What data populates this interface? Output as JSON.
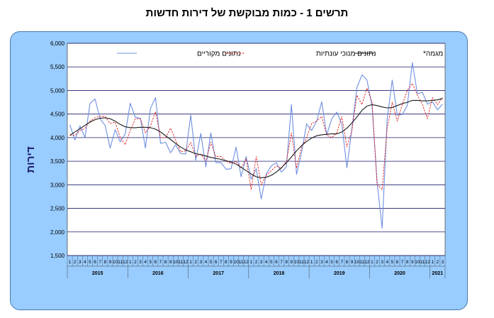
{
  "title": "תרשים 1 - כמות מבוקשת של דירות חדשות",
  "chart_data": {
    "type": "line",
    "ylabel": "דירות",
    "xlabel": "",
    "ylim": [
      1500,
      6000
    ],
    "yticks": [
      "1,500",
      "2,000",
      "2,500",
      "3,000",
      "3,500",
      "4,000",
      "4,500",
      "5,000",
      "5,500",
      "6,000"
    ],
    "ytick_values": [
      1500,
      2000,
      2500,
      3000,
      3500,
      4000,
      4500,
      5000,
      5500,
      6000
    ],
    "grid": true,
    "legend_position": "top",
    "x_month_labels": [
      "1",
      "2",
      "3",
      "4",
      "5",
      "6",
      "7",
      "8",
      "9",
      "10",
      "11",
      "12"
    ],
    "years": [
      "2015",
      "2016",
      "2017",
      "2018",
      "2019",
      "2020",
      "2021"
    ],
    "series": [
      {
        "name": "נתונים מקוריים",
        "color": "#6f8fe0",
        "style": "solid",
        "values": [
          4270,
          3950,
          4250,
          4000,
          4720,
          4820,
          4400,
          4260,
          3780,
          4170,
          3910,
          4080,
          4730,
          4430,
          4410,
          3780,
          4620,
          4850,
          3880,
          3900,
          3680,
          3850,
          3660,
          3650,
          4480,
          3520,
          4090,
          3380,
          4100,
          3470,
          3470,
          3330,
          3340,
          3800,
          3170,
          3600,
          3120,
          3340,
          2700,
          3230,
          3400,
          3470,
          3270,
          3380,
          4700,
          3220,
          3690,
          4290,
          4150,
          4350,
          4760,
          4060,
          4400,
          4540,
          4290,
          3360,
          4190,
          5060,
          5330,
          5220,
          4660,
          3050,
          2080,
          4400,
          5220,
          4480,
          4490,
          4680,
          5590,
          4930,
          4960,
          4710,
          4760,
          4590,
          4710
        ],
        "line_width": 1.1
      },
      {
        "name": "נתונים מנוכי עונתיות",
        "color": "#e02020",
        "style": "dashed",
        "values": [
          4050,
          4050,
          4150,
          4200,
          4350,
          4420,
          4450,
          4450,
          4300,
          4330,
          4000,
          3850,
          4150,
          4400,
          4400,
          4100,
          4250,
          4550,
          4000,
          4000,
          4200,
          3950,
          3700,
          3720,
          3900,
          3600,
          3650,
          3500,
          3900,
          3600,
          3600,
          3500,
          3450,
          3500,
          3350,
          3550,
          2900,
          3600,
          3000,
          3200,
          3300,
          3400,
          3350,
          3500,
          4100,
          3350,
          3800,
          4000,
          4300,
          4350,
          4450,
          4050,
          4000,
          4100,
          4450,
          3800,
          4150,
          4900,
          4700,
          5050,
          4750,
          3000,
          2900,
          4200,
          4750,
          4350,
          4700,
          5000,
          5150,
          4900,
          4700,
          4400,
          4850,
          4700,
          4850
        ],
        "line_width": 0.9
      },
      {
        "name": "מגמה*",
        "color": "#1a1a1a",
        "style": "solid",
        "values": [
          4050,
          4120,
          4190,
          4260,
          4330,
          4380,
          4410,
          4420,
          4400,
          4350,
          4280,
          4230,
          4210,
          4210,
          4220,
          4220,
          4210,
          4180,
          4120,
          4040,
          3960,
          3880,
          3800,
          3740,
          3700,
          3660,
          3640,
          3610,
          3580,
          3560,
          3540,
          3510,
          3480,
          3440,
          3370,
          3300,
          3230,
          3170,
          3150,
          3160,
          3200,
          3270,
          3360,
          3470,
          3590,
          3720,
          3830,
          3920,
          3990,
          4040,
          4060,
          4070,
          4080,
          4080,
          4120,
          4200,
          4310,
          4440,
          4580,
          4670,
          4700,
          4680,
          4650,
          4630,
          4640,
          4680,
          4720,
          4750,
          4790,
          4790,
          4780,
          4780,
          4790,
          4800,
          4830
        ],
        "line_width": 1.1
      }
    ]
  }
}
